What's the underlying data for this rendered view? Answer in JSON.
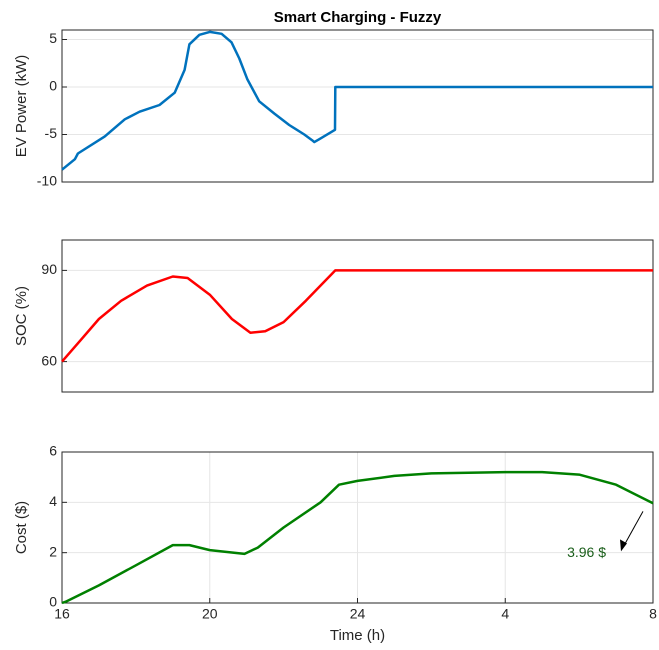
{
  "chart_data": [
    {
      "type": "line",
      "title": "Smart Charging - Fuzzy",
      "ylabel": "EV Power (kW)",
      "x": [
        16,
        16.35,
        16.43,
        17.16,
        17.7,
        18.1,
        18.64,
        19.05,
        19.32,
        19.45,
        19.72,
        20.0,
        20.32,
        20.59,
        20.8,
        21.02,
        21.34,
        21.75,
        22.15,
        22.56,
        22.77,
        22.83,
        22.96,
        23.39,
        23.4,
        32
      ],
      "values": [
        -8.7,
        -7.6,
        -7.0,
        -5.2,
        -3.4,
        -2.6,
        -1.9,
        -0.6,
        1.8,
        4.5,
        5.5,
        5.8,
        5.6,
        4.7,
        3.0,
        0.8,
        -1.5,
        -2.8,
        -4.0,
        -5.0,
        -5.6,
        -5.8,
        -5.5,
        -4.5,
        0,
        0
      ],
      "color": "#0072BD",
      "xlim": [
        16,
        32
      ],
      "ylim": [
        -10,
        6
      ],
      "yticks": [
        -10,
        -5,
        0,
        5
      ],
      "grid": true
    },
    {
      "type": "line",
      "ylabel": "SOC (%)",
      "x": [
        16,
        16.5,
        17,
        17.6,
        18.3,
        19,
        19.4,
        20,
        20.6,
        21.1,
        21.5,
        22,
        22.6,
        23.4,
        32
      ],
      "values": [
        60,
        67,
        74,
        80,
        85,
        88,
        87.5,
        82,
        74,
        69.5,
        70,
        73,
        80,
        90,
        90
      ],
      "color": "#FF0000",
      "xlim": [
        16,
        32
      ],
      "ylim": [
        50,
        100
      ],
      "yticks": [
        60,
        90
      ],
      "grid": true
    },
    {
      "type": "line",
      "ylabel": "Cost ($)",
      "xlabel": "Time (h)",
      "annotation": "3.96 $",
      "x": [
        16,
        16.1,
        17,
        18,
        19,
        19.45,
        20,
        20.94,
        21.3,
        22,
        23,
        23.5,
        24,
        25,
        26,
        28,
        29,
        30,
        31,
        32
      ],
      "values": [
        0,
        0.05,
        0.7,
        1.5,
        2.3,
        2.3,
        2.1,
        1.95,
        2.2,
        3.0,
        4.0,
        4.7,
        4.85,
        5.05,
        5.15,
        5.2,
        5.2,
        5.1,
        4.7,
        3.96
      ],
      "color": "#008000",
      "xlim": [
        16,
        32
      ],
      "ylim": [
        0,
        6
      ],
      "yticks": [
        0,
        2,
        4,
        6
      ],
      "xticks": [
        16,
        20,
        24,
        {
          "value": 28,
          "label": "4"
        },
        {
          "value": 32,
          "label": "8"
        }
      ],
      "grid": true
    }
  ]
}
